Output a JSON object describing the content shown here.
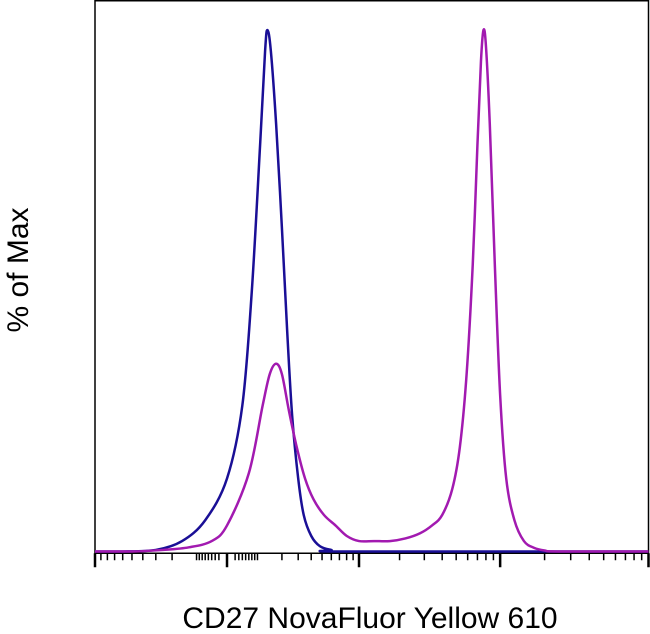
{
  "chart_data": {
    "type": "line",
    "title": "",
    "xlabel": "CD27 NovaFluor Yellow 610",
    "ylabel": "% of Max",
    "x_scale": "biexponential",
    "x_range": [
      -1000,
      100000
    ],
    "y_range": [
      0,
      100
    ],
    "grid": false,
    "legend": "none",
    "x_tick_decades": [
      0,
      1000,
      10000,
      100000
    ],
    "series": [
      {
        "color": "#1a0f96",
        "points": [
          [
            -1000,
            0
          ],
          [
            -600,
            0
          ],
          [
            -300,
            0.3
          ],
          [
            -150,
            2
          ],
          [
            -60,
            6
          ],
          [
            0,
            14
          ],
          [
            40,
            28
          ],
          [
            70,
            50
          ],
          [
            100,
            78
          ],
          [
            120,
            96
          ],
          [
            130,
            100
          ],
          [
            145,
            96
          ],
          [
            170,
            82
          ],
          [
            200,
            62
          ],
          [
            230,
            42
          ],
          [
            260,
            26
          ],
          [
            300,
            14
          ],
          [
            340,
            7
          ],
          [
            400,
            3
          ],
          [
            480,
            1
          ],
          [
            600,
            0.3
          ],
          [
            800,
            0
          ],
          [
            100000,
            0
          ]
        ]
      },
      {
        "color": "#a21ab0",
        "points": [
          [
            -1000,
            0
          ],
          [
            -500,
            0
          ],
          [
            -250,
            0.3
          ],
          [
            -120,
            0.8
          ],
          [
            -40,
            2
          ],
          [
            0,
            5
          ],
          [
            60,
            15
          ],
          [
            110,
            28
          ],
          [
            140,
            34
          ],
          [
            170,
            36
          ],
          [
            200,
            34
          ],
          [
            240,
            27
          ],
          [
            290,
            20
          ],
          [
            350,
            14
          ],
          [
            420,
            10
          ],
          [
            520,
            7
          ],
          [
            650,
            5
          ],
          [
            800,
            3
          ],
          [
            1000,
            2
          ],
          [
            1300,
            2
          ],
          [
            1700,
            2
          ],
          [
            2200,
            2.5
          ],
          [
            2800,
            3.5
          ],
          [
            3400,
            5
          ],
          [
            4000,
            7
          ],
          [
            4700,
            12
          ],
          [
            5300,
            20
          ],
          [
            5900,
            34
          ],
          [
            6500,
            55
          ],
          [
            7000,
            78
          ],
          [
            7400,
            94
          ],
          [
            7700,
            100
          ],
          [
            8000,
            97
          ],
          [
            8500,
            82
          ],
          [
            9200,
            55
          ],
          [
            10000,
            30
          ],
          [
            11000,
            14
          ],
          [
            12500,
            6
          ],
          [
            14500,
            2
          ],
          [
            17000,
            0.7
          ],
          [
            20000,
            0.2
          ],
          [
            25000,
            0
          ],
          [
            100000,
            0
          ]
        ]
      }
    ]
  }
}
